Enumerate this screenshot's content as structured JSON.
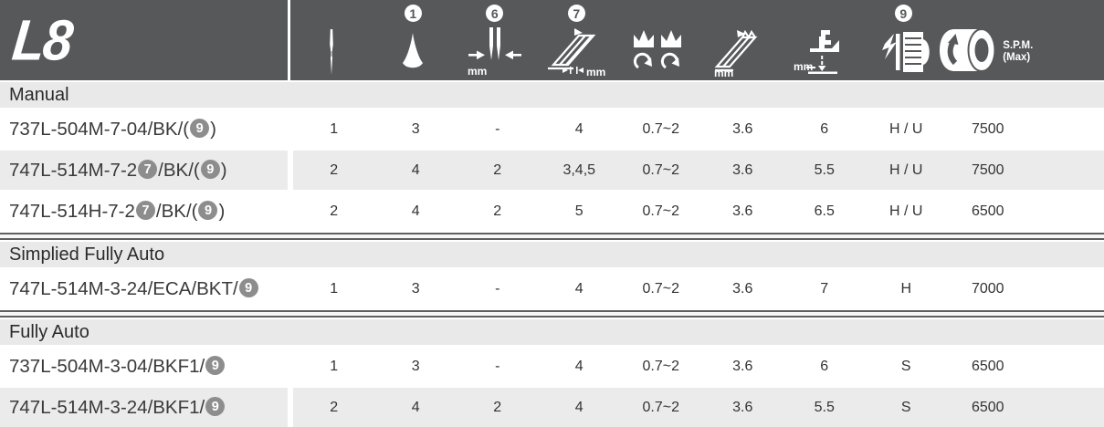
{
  "header": {
    "logo": "L8",
    "columns": [
      {
        "icon": "needle-icon",
        "badge": ""
      },
      {
        "icon": "thread-cone-icon",
        "badge": "1"
      },
      {
        "icon": "needle-gauge-icon",
        "badge": "6",
        "unit": "mm"
      },
      {
        "icon": "stitch-length-icon",
        "badge": "7",
        "unit": "mm"
      },
      {
        "icon": "loopers-icon",
        "badge": ""
      },
      {
        "icon": "seam-width-icon",
        "badge": "",
        "unit": "mm"
      },
      {
        "icon": "foot-lift-icon",
        "badge": "",
        "unit": "mm"
      },
      {
        "icon": "motor-icon",
        "badge": "9"
      },
      {
        "icon": "pulley-speed-icon",
        "badge": "",
        "label_line1": "S.P.M.",
        "label_line2": "(Max)"
      }
    ]
  },
  "table": {
    "sections": [
      {
        "label": "Manual",
        "divider_before": false,
        "rows": [
          {
            "model": [
              {
                "t": "text",
                "v": "737L-504M-7-04/BK/("
              },
              {
                "t": "badge",
                "v": "9"
              },
              {
                "t": "text",
                "v": ")"
              }
            ],
            "values": [
              "1",
              "3",
              "-",
              "4",
              "0.7~2",
              "3.6",
              "6",
              "H / U",
              "7500"
            ]
          },
          {
            "model": [
              {
                "t": "text",
                "v": "747L-514M-7-2"
              },
              {
                "t": "badge",
                "v": "7"
              },
              {
                "t": "text",
                "v": "/BK/("
              },
              {
                "t": "badge",
                "v": "9"
              },
              {
                "t": "text",
                "v": ")"
              }
            ],
            "values": [
              "2",
              "4",
              "2",
              "3,4,5",
              "0.7~2",
              "3.6",
              "5.5",
              "H / U",
              "7500"
            ]
          },
          {
            "model": [
              {
                "t": "text",
                "v": "747L-514H-7-2"
              },
              {
                "t": "badge",
                "v": "7"
              },
              {
                "t": "text",
                "v": "/BK/("
              },
              {
                "t": "badge",
                "v": "9"
              },
              {
                "t": "text",
                "v": ")"
              }
            ],
            "values": [
              "2",
              "4",
              "2",
              "5",
              "0.7~2",
              "3.6",
              "6.5",
              "H / U",
              "6500"
            ]
          }
        ]
      },
      {
        "label": "Simplied Fully Auto",
        "divider_before": true,
        "rows": [
          {
            "model": [
              {
                "t": "text",
                "v": "747L-514M-3-24/ECA/BKT/"
              },
              {
                "t": "badge",
                "v": "9"
              }
            ],
            "values": [
              "1",
              "3",
              "-",
              "4",
              "0.7~2",
              "3.6",
              "7",
              "H",
              "7000"
            ]
          }
        ]
      },
      {
        "label": "Fully Auto",
        "divider_before": true,
        "rows": [
          {
            "model": [
              {
                "t": "text",
                "v": "737L-504M-3-04/BKF1/"
              },
              {
                "t": "badge",
                "v": "9"
              }
            ],
            "values": [
              "1",
              "3",
              "-",
              "4",
              "0.7~2",
              "3.6",
              "6",
              "S",
              "6500"
            ]
          },
          {
            "model": [
              {
                "t": "text",
                "v": "747L-514M-3-24/BKF1/"
              },
              {
                "t": "badge",
                "v": "9"
              }
            ],
            "values": [
              "2",
              "4",
              "2",
              "4",
              "0.7~2",
              "3.6",
              "5.5",
              "S",
              "6500"
            ]
          }
        ]
      }
    ]
  },
  "colors": {
    "header_bg": "#57585a",
    "shaded_row": "#ebebeb",
    "section_row": "#e9e9e9",
    "inline_badge": "#8d8d8d",
    "divider_line": "#5f5f5f",
    "text": "#3a3a3a"
  }
}
